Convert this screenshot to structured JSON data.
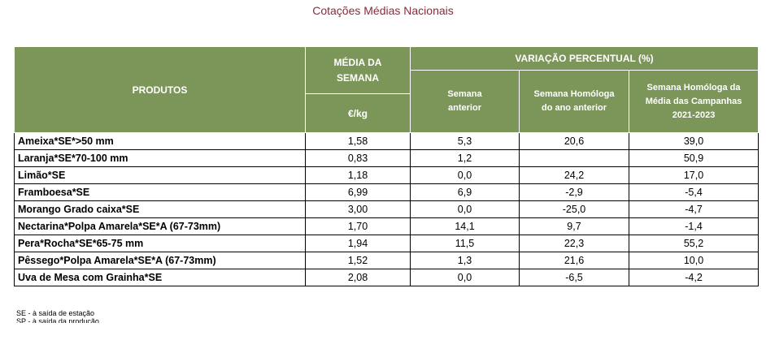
{
  "title": "Cotações Médias Nacionais",
  "headers": {
    "produtos": "PRODUTOS",
    "media_line1": "MÉDIA DA",
    "media_line2": "SEMANA",
    "unit": "€/kg",
    "variacao": "VARIAÇÃO PERCENTUAL (%)",
    "semana_anterior_line1": "Semana",
    "semana_anterior_line2": "anterior",
    "homologa_ano_line1": "Semana Homóloga",
    "homologa_ano_line2": "do ano anterior",
    "homologa_camp_line1": "Semana Homóloga da",
    "homologa_camp_line2": "Média das Campanhas",
    "homologa_camp_line3": "2021-2023"
  },
  "rows": [
    {
      "produto": "Ameixa*SE*>50 mm",
      "media": "1,58",
      "sem_ant": "5,3",
      "hom_ano": "20,6",
      "hom_camp": "39,0"
    },
    {
      "produto": "Laranja*SE*70-100 mm",
      "media": "0,83",
      "sem_ant": "1,2",
      "hom_ano": "",
      "hom_camp": "50,9"
    },
    {
      "produto": "Limão*SE",
      "media": "1,18",
      "sem_ant": "0,0",
      "hom_ano": "24,2",
      "hom_camp": "17,0"
    },
    {
      "produto": "Framboesa*SE",
      "media": "6,99",
      "sem_ant": "6,9",
      "hom_ano": "-2,9",
      "hom_camp": "-5,4"
    },
    {
      "produto": "Morango Grado caixa*SE",
      "media": "3,00",
      "sem_ant": "0,0",
      "hom_ano": "-25,0",
      "hom_camp": "-4,7"
    },
    {
      "produto": "Nectarina*Polpa Amarela*SE*A (67-73mm)",
      "media": "1,70",
      "sem_ant": "14,1",
      "hom_ano": "9,7",
      "hom_camp": "-1,4"
    },
    {
      "produto": "Pera*Rocha*SE*65-75 mm",
      "media": "1,94",
      "sem_ant": "11,5",
      "hom_ano": "22,3",
      "hom_camp": "55,2"
    },
    {
      "produto": "Pêssego*Polpa Amarela*SE*A (67-73mm)",
      "media": "1,52",
      "sem_ant": "1,3",
      "hom_ano": "21,6",
      "hom_camp": "10,0"
    },
    {
      "produto": "Uva de Mesa com Grainha*SE",
      "media": "2,08",
      "sem_ant": "0,0",
      "hom_ano": "-6,5",
      "hom_camp": "-4,2"
    }
  ],
  "footnotes": {
    "se": "SE - à saída de estação",
    "sp": "SP - à saída da produção"
  },
  "colors": {
    "header_bg": "#7c965a",
    "title": "#8b2a3a"
  }
}
